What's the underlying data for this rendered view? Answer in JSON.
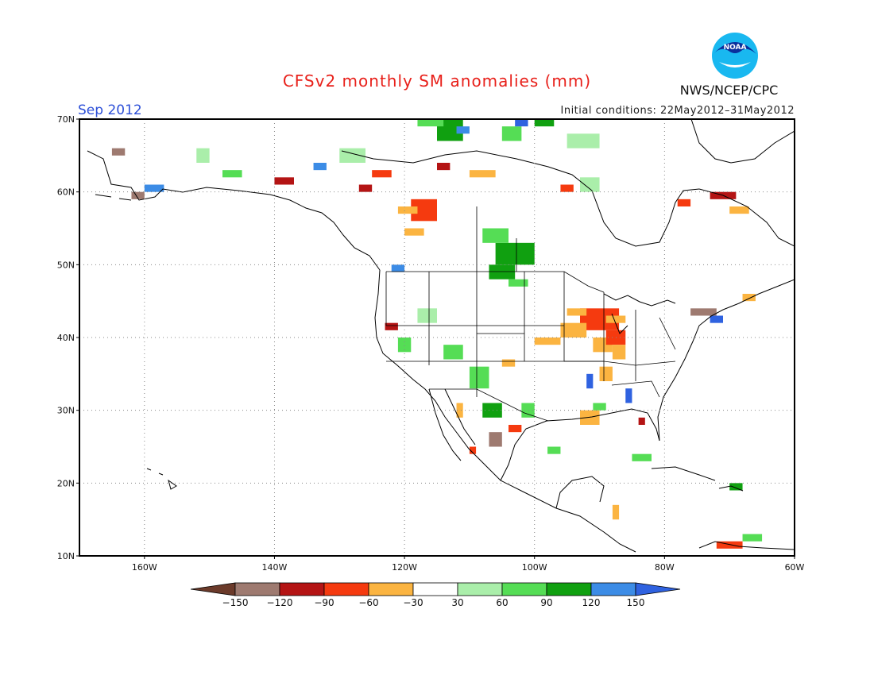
{
  "title": "CFSv2 monthly SM anomalies (mm)",
  "month_label": "Sep 2012",
  "init_conditions": "Initial conditions: 22May2012–31May2012",
  "agency": "NWS/NCEP/CPC",
  "logo_text": "NOAA",
  "colors": {
    "title": "#e8201a",
    "month": "#2c4fd8",
    "map_border": "#000000",
    "coast": "#000000",
    "grid": "#888888"
  },
  "map_data": {
    "type": "heatmap",
    "projection": "equirectangular",
    "lon_range": [
      -170,
      -60
    ],
    "lat_range": [
      10,
      70
    ],
    "lat_ticks": [
      {
        "value": 70,
        "label": "70N"
      },
      {
        "value": 60,
        "label": "60N"
      },
      {
        "value": 50,
        "label": "50N"
      },
      {
        "value": 40,
        "label": "40N"
      },
      {
        "value": 30,
        "label": "30N"
      },
      {
        "value": 20,
        "label": "20N"
      },
      {
        "value": 10,
        "label": "10N"
      }
    ],
    "lon_ticks": [
      {
        "value": -160,
        "label": "160W"
      },
      {
        "value": -140,
        "label": "140W"
      },
      {
        "value": -120,
        "label": "120W"
      },
      {
        "value": -100,
        "label": "100W"
      },
      {
        "value": -80,
        "label": "80W"
      },
      {
        "value": -60,
        "label": "60W"
      }
    ],
    "colorbar": {
      "bins": [
        {
          "color": "#6b3a2a"
        },
        {
          "color": "#9e7a70"
        },
        {
          "color": "#b41414"
        },
        {
          "color": "#f53a0f"
        },
        {
          "color": "#fbb441"
        },
        {
          "color": "#ffffff"
        },
        {
          "color": "#aaeeaa"
        },
        {
          "color": "#55dd55"
        },
        {
          "color": "#10a010"
        },
        {
          "color": "#3c8ce6"
        },
        {
          "color": "#2f62e0"
        }
      ],
      "tick_labels": [
        "−150",
        "−120",
        "−90",
        "−60",
        "−30",
        "30",
        "60",
        "90",
        "120",
        "150"
      ]
    },
    "anomaly_cells": [
      {
        "lon": -93,
        "lat": 41,
        "w": 6,
        "h": 3,
        "value": -90
      },
      {
        "lon": -96,
        "lat": 40,
        "w": 4,
        "h": 2,
        "value": -60
      },
      {
        "lon": -91,
        "lat": 38,
        "w": 3,
        "h": 2,
        "value": -60
      },
      {
        "lon": -89,
        "lat": 39,
        "w": 3,
        "h": 2,
        "value": -90
      },
      {
        "lon": -88,
        "lat": 37,
        "w": 2,
        "h": 2,
        "value": -60
      },
      {
        "lon": -95,
        "lat": 43,
        "w": 3,
        "h": 1,
        "value": -60
      },
      {
        "lon": -89,
        "lat": 42,
        "w": 3,
        "h": 1,
        "value": -60
      },
      {
        "lon": -100,
        "lat": 39,
        "w": 4,
        "h": 1,
        "value": -60
      },
      {
        "lon": -106,
        "lat": 50,
        "w": 6,
        "h": 3,
        "value": 90
      },
      {
        "lon": -107,
        "lat": 48,
        "w": 4,
        "h": 2,
        "value": 90
      },
      {
        "lon": -104,
        "lat": 47,
        "w": 3,
        "h": 1,
        "value": 60
      },
      {
        "lon": -108,
        "lat": 53,
        "w": 4,
        "h": 2,
        "value": 60
      },
      {
        "lon": -119,
        "lat": 56,
        "w": 4,
        "h": 3,
        "value": -90
      },
      {
        "lon": -121,
        "lat": 57,
        "w": 3,
        "h": 1,
        "value": -60
      },
      {
        "lon": -120,
        "lat": 54,
        "w": 3,
        "h": 1,
        "value": -60
      },
      {
        "lon": -73,
        "lat": 59,
        "w": 4,
        "h": 1,
        "value": -120
      },
      {
        "lon": -78,
        "lat": 58,
        "w": 2,
        "h": 1,
        "value": -90
      },
      {
        "lon": -70,
        "lat": 57,
        "w": 3,
        "h": 1,
        "value": -60
      },
      {
        "lon": -68,
        "lat": 51,
        "w": 4,
        "h": 1,
        "value": -30
      },
      {
        "lon": -115,
        "lat": 67,
        "w": 4,
        "h": 3,
        "value": 90
      },
      {
        "lon": -112,
        "lat": 68,
        "w": 2,
        "h": 1,
        "value": 120
      },
      {
        "lon": -105,
        "lat": 67,
        "w": 3,
        "h": 2,
        "value": 60
      },
      {
        "lon": -95,
        "lat": 66,
        "w": 5,
        "h": 2,
        "value": 30
      },
      {
        "lon": -118,
        "lat": 69,
        "w": 4,
        "h": 1,
        "value": 60
      },
      {
        "lon": -100,
        "lat": 69,
        "w": 3,
        "h": 1,
        "value": 90
      },
      {
        "lon": -103,
        "lat": 69,
        "w": 2,
        "h": 1,
        "value": 150
      },
      {
        "lon": -130,
        "lat": 64,
        "w": 4,
        "h": 2,
        "value": 30
      },
      {
        "lon": -140,
        "lat": 61,
        "w": 3,
        "h": 1,
        "value": -120
      },
      {
        "lon": -134,
        "lat": 63,
        "w": 2,
        "h": 1,
        "value": 120
      },
      {
        "lon": -160,
        "lat": 60,
        "w": 3,
        "h": 1,
        "value": 120
      },
      {
        "lon": -162,
        "lat": 59,
        "w": 2,
        "h": 1,
        "value": -150
      },
      {
        "lon": -148,
        "lat": 62,
        "w": 3,
        "h": 1,
        "value": 60
      },
      {
        "lon": -152,
        "lat": 64,
        "w": 2,
        "h": 2,
        "value": 30
      },
      {
        "lon": -165,
        "lat": 65,
        "w": 2,
        "h": 1,
        "value": -150
      },
      {
        "lon": -125,
        "lat": 62,
        "w": 3,
        "h": 1,
        "value": -90
      },
      {
        "lon": -127,
        "lat": 60,
        "w": 2,
        "h": 1,
        "value": -120
      },
      {
        "lon": -110,
        "lat": 62,
        "w": 4,
        "h": 1,
        "value": -60
      },
      {
        "lon": -115,
        "lat": 63,
        "w": 2,
        "h": 1,
        "value": -120
      },
      {
        "lon": -96,
        "lat": 60,
        "w": 2,
        "h": 1,
        "value": -90
      },
      {
        "lon": -93,
        "lat": 60,
        "w": 3,
        "h": 2,
        "value": 30
      },
      {
        "lon": -110,
        "lat": 33,
        "w": 3,
        "h": 3,
        "value": 60
      },
      {
        "lon": -114,
        "lat": 37,
        "w": 3,
        "h": 2,
        "value": 60
      },
      {
        "lon": -105,
        "lat": 36,
        "w": 2,
        "h": 1,
        "value": -60
      },
      {
        "lon": -103,
        "lat": 34,
        "w": 2,
        "h": 1,
        "value": -30
      },
      {
        "lon": -107,
        "lat": 25,
        "w": 2,
        "h": 2,
        "value": -150
      },
      {
        "lon": -104,
        "lat": 27,
        "w": 2,
        "h": 1,
        "value": -90
      },
      {
        "lon": -102,
        "lat": 29,
        "w": 2,
        "h": 2,
        "value": 60
      },
      {
        "lon": -108,
        "lat": 29,
        "w": 3,
        "h": 2,
        "value": 90
      },
      {
        "lon": -93,
        "lat": 28,
        "w": 3,
        "h": 2,
        "value": -60
      },
      {
        "lon": -91,
        "lat": 30,
        "w": 2,
        "h": 1,
        "value": 60
      },
      {
        "lon": -90,
        "lat": 34,
        "w": 2,
        "h": 2,
        "value": -60
      },
      {
        "lon": -92,
        "lat": 33,
        "w": 1,
        "h": 2,
        "value": 150
      },
      {
        "lon": -86,
        "lat": 31,
        "w": 1,
        "h": 2,
        "value": 150
      },
      {
        "lon": -84,
        "lat": 28,
        "w": 1,
        "h": 1,
        "value": -120
      },
      {
        "lon": -76,
        "lat": 43,
        "w": 4,
        "h": 1,
        "value": -150
      },
      {
        "lon": -73,
        "lat": 42,
        "w": 2,
        "h": 1,
        "value": 150
      },
      {
        "lon": -68,
        "lat": 45,
        "w": 2,
        "h": 1,
        "value": -60
      },
      {
        "lon": -122,
        "lat": 49,
        "w": 2,
        "h": 1,
        "value": 120
      },
      {
        "lon": -123,
        "lat": 41,
        "w": 2,
        "h": 1,
        "value": -120
      },
      {
        "lon": -118,
        "lat": 42,
        "w": 3,
        "h": 2,
        "value": 30
      },
      {
        "lon": -121,
        "lat": 38,
        "w": 2,
        "h": 2,
        "value": 60
      },
      {
        "lon": -85,
        "lat": 23,
        "w": 3,
        "h": 1,
        "value": 60
      },
      {
        "lon": -70,
        "lat": 19,
        "w": 2,
        "h": 1,
        "value": 90
      },
      {
        "lon": -72,
        "lat": 11,
        "w": 4,
        "h": 1,
        "value": -90
      },
      {
        "lon": -68,
        "lat": 12,
        "w": 3,
        "h": 1,
        "value": 60
      },
      {
        "lon": -88,
        "lat": 15,
        "w": 1,
        "h": 2,
        "value": -60
      },
      {
        "lon": -84,
        "lat": 12,
        "w": 1,
        "h": 1,
        "value": -30
      },
      {
        "lon": -112,
        "lat": 29,
        "w": 1,
        "h": 2,
        "value": -60
      },
      {
        "lon": -110,
        "lat": 24,
        "w": 1,
        "h": 1,
        "value": -90
      },
      {
        "lon": -98,
        "lat": 24,
        "w": 2,
        "h": 1,
        "value": 60
      }
    ]
  }
}
